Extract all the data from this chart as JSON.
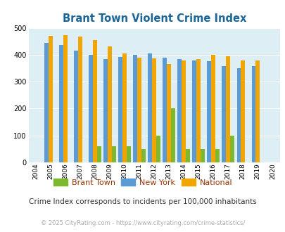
{
  "title": "Brant Town Violent Crime Index",
  "years": [
    2004,
    2005,
    2006,
    2007,
    2008,
    2009,
    2010,
    2011,
    2012,
    2013,
    2014,
    2015,
    2016,
    2017,
    2018,
    2019,
    2020
  ],
  "data_years": [
    2005,
    2006,
    2007,
    2008,
    2009,
    2010,
    2011,
    2012,
    2013,
    2014,
    2015,
    2016,
    2017,
    2018,
    2019
  ],
  "brant_town": [
    0,
    0,
    0,
    60,
    60,
    60,
    50,
    100,
    200,
    50,
    50,
    50,
    100,
    0,
    0
  ],
  "new_york": [
    445,
    435,
    415,
    400,
    385,
    393,
    400,
    405,
    390,
    383,
    380,
    377,
    357,
    350,
    358
  ],
  "national": [
    469,
    473,
    467,
    455,
    432,
    405,
    388,
    387,
    366,
    378,
    383,
    399,
    394,
    380,
    380
  ],
  "brant_color": "#7db831",
  "ny_color": "#5b9bd5",
  "national_color": "#f0a500",
  "bg_color": "#ddeef5",
  "ylim": [
    0,
    500
  ],
  "yticks": [
    0,
    100,
    200,
    300,
    400,
    500
  ],
  "bar_width": 0.28,
  "subtitle": "Crime Index corresponds to incidents per 100,000 inhabitants",
  "footer": "© 2025 CityRating.com - https://www.cityrating.com/crime-statistics/",
  "title_color": "#1a6699",
  "legend_text_color": "#993300",
  "subtitle_color": "#333333",
  "footer_color": "#aaaaaa"
}
